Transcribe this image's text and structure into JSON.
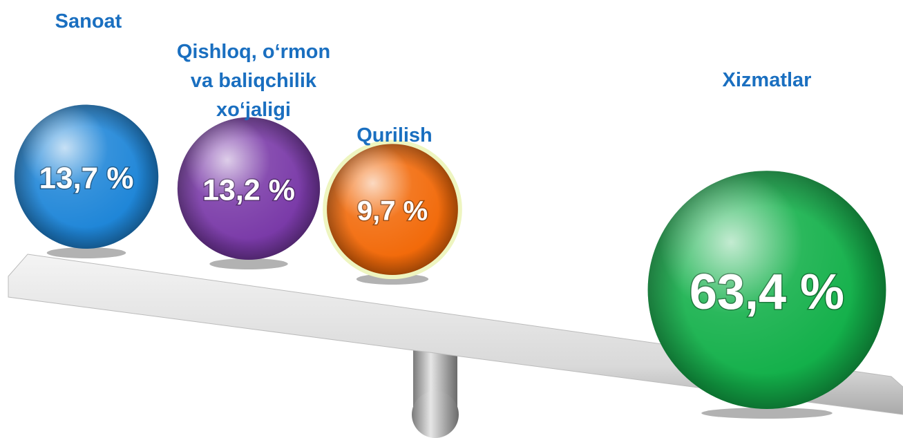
{
  "chart_data": {
    "type": "bubble",
    "categories": [
      "Sanoat",
      "Qishloq, o‘rmon va baliqchilik xo‘jaligi",
      "Qurilish",
      "Xizmatlar"
    ],
    "values": [
      13.7,
      13.2,
      9.7,
      63.4
    ],
    "value_labels": [
      "13,7 %",
      "13,2 %",
      "9,7 %",
      "63,4 %"
    ],
    "colors": [
      "#1f86d8",
      "#7a3aa8",
      "#f26a0a",
      "#13b04a"
    ]
  }
}
